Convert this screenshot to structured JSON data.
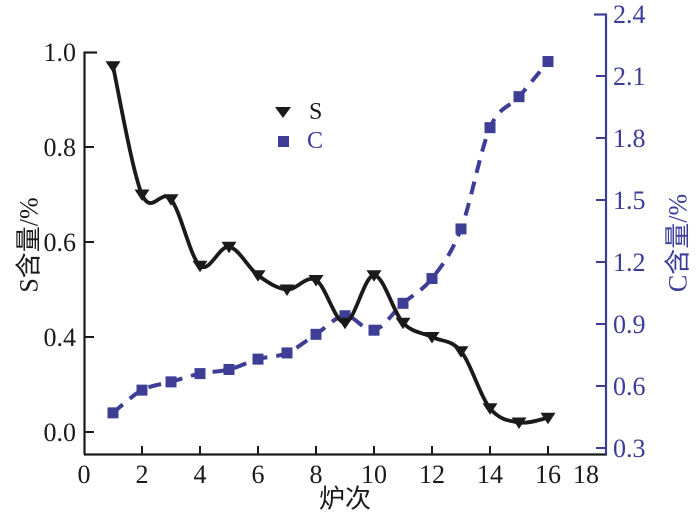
{
  "chart_data": {
    "type": "line",
    "title": "",
    "xlabel": "炉次",
    "ylabel_left": "S含量/%",
    "ylabel_right": "C含量/%",
    "x": [
      1,
      2,
      3,
      4,
      5,
      6,
      7,
      8,
      9,
      10,
      11,
      12,
      13,
      14,
      15,
      16
    ],
    "series": [
      {
        "name": "S",
        "axis": "left",
        "color": "#1a1a1a",
        "marker": "triangle-down",
        "line_style": "solid",
        "values": [
          0.97,
          0.7,
          0.69,
          0.55,
          0.59,
          0.53,
          0.5,
          0.52,
          0.43,
          0.53,
          0.43,
          0.4,
          0.34,
          0.1,
          0.04,
          0.06
        ]
      },
      {
        "name": "C",
        "axis": "right",
        "color": "#3e3e96",
        "marker": "square",
        "line_style": "dashed",
        "values": [
          0.47,
          0.58,
          0.62,
          0.66,
          0.68,
          0.73,
          0.76,
          0.85,
          0.94,
          0.87,
          1.0,
          1.12,
          1.36,
          1.85,
          2.0,
          2.17
        ]
      }
    ],
    "x_range": [
      0,
      18
    ],
    "x_ticks": [
      "0",
      "2",
      "4",
      "6",
      "8",
      "10",
      "12",
      "14",
      "16",
      "18"
    ],
    "left_ticks": [
      "1.0",
      "0.8",
      "0.6",
      "0.4",
      "0.0"
    ],
    "left_axis_note": "ticks evenly spaced; lowest interval spans 0.4 to 0.0",
    "right_ticks": [
      "2.4",
      "2.1",
      "1.8",
      "1.5",
      "1.2",
      "0.9",
      "0.6",
      "0.3"
    ],
    "right_range": [
      0.3,
      2.4
    ],
    "grid": false,
    "legend_position": "upper-center",
    "legend": [
      {
        "label": "S",
        "marker": "triangle-down",
        "color": "#1a1a1a"
      },
      {
        "label": "C",
        "marker": "square",
        "color": "#3e3e96"
      }
    ]
  },
  "colors": {
    "s_series": "#1a1a1a",
    "c_series": "#3e3e96",
    "axis_black": "#1a1a1a",
    "axis_blue": "#3c3c99",
    "background": "#ffffff"
  }
}
